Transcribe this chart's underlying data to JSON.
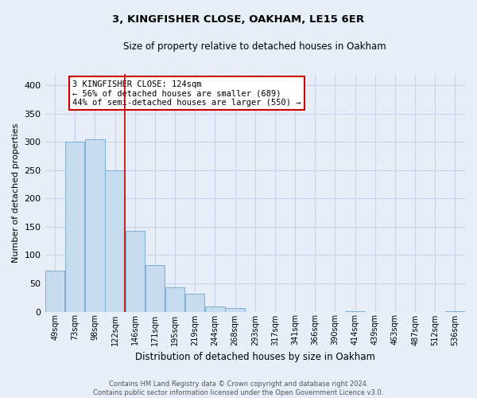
{
  "title": "3, KINGFISHER CLOSE, OAKHAM, LE15 6ER",
  "subtitle": "Size of property relative to detached houses in Oakham",
  "xlabel": "Distribution of detached houses by size in Oakham",
  "ylabel": "Number of detached properties",
  "footer_line1": "Contains HM Land Registry data © Crown copyright and database right 2024.",
  "footer_line2": "Contains public sector information licensed under the Open Government Licence v3.0.",
  "bin_labels": [
    "49sqm",
    "73sqm",
    "98sqm",
    "122sqm",
    "146sqm",
    "171sqm",
    "195sqm",
    "219sqm",
    "244sqm",
    "268sqm",
    "293sqm",
    "317sqm",
    "341sqm",
    "366sqm",
    "390sqm",
    "414sqm",
    "439sqm",
    "463sqm",
    "487sqm",
    "512sqm",
    "536sqm"
  ],
  "bar_values": [
    73,
    300,
    305,
    250,
    143,
    83,
    43,
    32,
    9,
    6,
    0,
    0,
    0,
    0,
    0,
    1,
    0,
    0,
    0,
    0,
    1
  ],
  "bar_color": "#c6dcee",
  "bar_edge_color": "#7bafd4",
  "vline_x_index": 3,
  "vline_color": "#cc0000",
  "ylim": [
    0,
    420
  ],
  "yticks": [
    0,
    50,
    100,
    150,
    200,
    250,
    300,
    350,
    400
  ],
  "annotation_title": "3 KINGFISHER CLOSE: 124sqm",
  "annotation_line1": "← 56% of detached houses are smaller (689)",
  "annotation_line2": "44% of semi-detached houses are larger (550) →",
  "annotation_box_color": "#cc0000",
  "grid_color": "#c8d4e8",
  "background_color": "#e8eef8"
}
